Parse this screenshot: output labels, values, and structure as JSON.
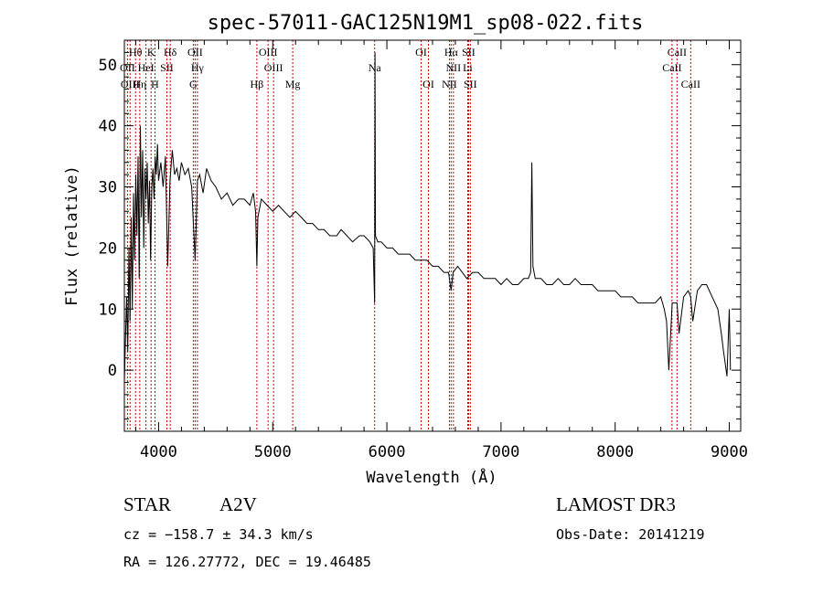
{
  "chart_data": {
    "type": "line",
    "title": "spec-57011-GAC125N19M1_sp08-022.fits",
    "xlabel": "Wavelength (Å)",
    "ylabel": "Flux (relative)",
    "xlim": [
      3700,
      9100
    ],
    "ylim": [
      -10,
      54
    ],
    "xticks": [
      4000,
      5000,
      6000,
      7000,
      8000,
      9000
    ],
    "xtick_labels": [
      "4000",
      "5000",
      "6000",
      "7000",
      "8000",
      "9000"
    ],
    "yticks": [
      0,
      10,
      20,
      30,
      40,
      50
    ],
    "ytick_labels": [
      "0",
      "10",
      "20",
      "30",
      "40",
      "50"
    ],
    "series": [
      {
        "name": "flux",
        "x": [
          3700,
          3710,
          3720,
          3730,
          3740,
          3750,
          3760,
          3770,
          3780,
          3790,
          3800,
          3810,
          3820,
          3830,
          3840,
          3850,
          3860,
          3870,
          3880,
          3890,
          3900,
          3910,
          3920,
          3930,
          3940,
          3950,
          3960,
          3970,
          3980,
          3990,
          4000,
          4020,
          4040,
          4060,
          4080,
          4100,
          4120,
          4140,
          4160,
          4180,
          4200,
          4230,
          4260,
          4290,
          4320,
          4340,
          4360,
          4390,
          4420,
          4460,
          4500,
          4550,
          4600,
          4650,
          4700,
          4750,
          4800,
          4830,
          4850,
          4861,
          4870,
          4900,
          4950,
          5000,
          5050,
          5100,
          5150,
          5200,
          5250,
          5300,
          5350,
          5400,
          5450,
          5500,
          5560,
          5600,
          5650,
          5700,
          5760,
          5800,
          5850,
          5880,
          5893,
          5896,
          5900,
          5920,
          5950,
          6000,
          6050,
          6100,
          6150,
          6200,
          6250,
          6300,
          6350,
          6400,
          6450,
          6500,
          6540,
          6563,
          6580,
          6620,
          6660,
          6700,
          6750,
          6800,
          6850,
          6900,
          6950,
          7000,
          7050,
          7100,
          7150,
          7200,
          7240,
          7260,
          7270,
          7280,
          7300,
          7350,
          7400,
          7450,
          7500,
          7550,
          7600,
          7650,
          7700,
          7750,
          7800,
          7850,
          7900,
          7950,
          8000,
          8050,
          8100,
          8150,
          8200,
          8250,
          8300,
          8350,
          8400,
          8430,
          8450,
          8470,
          8500,
          8542,
          8560,
          8600,
          8640,
          8662,
          8680,
          8720,
          8760,
          8800,
          8850,
          8900,
          8930,
          8950,
          8980,
          9000,
          9010
        ],
        "y": [
          -2,
          5,
          12,
          3,
          20,
          8,
          25,
          10,
          29,
          18,
          32,
          22,
          35,
          15,
          40,
          25,
          36,
          20,
          33,
          28,
          34,
          24,
          31,
          18,
          30,
          33,
          28,
          35,
          32,
          37,
          31,
          34,
          30,
          35,
          17,
          31,
          36,
          32,
          33,
          31,
          34,
          32,
          33,
          30,
          18,
          31,
          32,
          29,
          33,
          31,
          30,
          28,
          29,
          27,
          28,
          28,
          27,
          29,
          26,
          17,
          25,
          28,
          27,
          26,
          27,
          26,
          25,
          26,
          25,
          24,
          24,
          23,
          23,
          22,
          22,
          23,
          22,
          21,
          22,
          22,
          21,
          20,
          11,
          52,
          22,
          21,
          21,
          20,
          20,
          19,
          19,
          19,
          18,
          18,
          18,
          17,
          17,
          16,
          16,
          13,
          16,
          17,
          16,
          15,
          16,
          16,
          15,
          15,
          15,
          14,
          15,
          14,
          14,
          15,
          15,
          16,
          34,
          17,
          15,
          15,
          14,
          14,
          15,
          14,
          14,
          15,
          14,
          14,
          14,
          13,
          13,
          13,
          13,
          12,
          12,
          12,
          11,
          11,
          11,
          11,
          12,
          10,
          8,
          0,
          11,
          11,
          6,
          12,
          13,
          12,
          8,
          13,
          14,
          14,
          12,
          10,
          6,
          3,
          -1,
          10,
          0
        ]
      }
    ],
    "emission_lines": [
      {
        "name": "Hθ",
        "x": 3798,
        "row": 0
      },
      {
        "name": "K",
        "x": 3934,
        "row": 0
      },
      {
        "name": "Hδ",
        "x": 4102,
        "row": 0
      },
      {
        "name": "OII",
        "x": 4320,
        "row": 0
      },
      {
        "name": "OIII",
        "x": 4959,
        "row": 0
      },
      {
        "name": "OI",
        "x": 6300,
        "row": 0
      },
      {
        "name": "Hα",
        "x": 6563,
        "row": 0
      },
      {
        "name": "SII",
        "x": 6716,
        "row": 0
      },
      {
        "name": "CaII",
        "x": 8542,
        "row": 0
      },
      {
        "name": "OII",
        "x": 3727,
        "row": 1
      },
      {
        "name": "HeI",
        "x": 3889,
        "row": 1
      },
      {
        "name": "SII",
        "x": 4072,
        "row": 1
      },
      {
        "name": "Hγ",
        "x": 4340,
        "row": 1
      },
      {
        "name": "OIII",
        "x": 5007,
        "row": 1
      },
      {
        "name": "Na",
        "x": 5893,
        "row": 1
      },
      {
        "name": "NII",
        "x": 6583,
        "row": 1
      },
      {
        "name": "Li",
        "x": 6708,
        "row": 1
      },
      {
        "name": "CaII",
        "x": 8498,
        "row": 1
      },
      {
        "name": "OIII",
        "x": 3750,
        "row": 2
      },
      {
        "name": "Hη",
        "x": 3835,
        "row": 2
      },
      {
        "name": "H",
        "x": 3968,
        "row": 2
      },
      {
        "name": "G",
        "x": 4304,
        "row": 2
      },
      {
        "name": "Hβ",
        "x": 4861,
        "row": 2
      },
      {
        "name": "Mg",
        "x": 5175,
        "row": 2
      },
      {
        "name": "OI",
        "x": 6364,
        "row": 2
      },
      {
        "name": "NII",
        "x": 6548,
        "row": 2
      },
      {
        "name": "SII",
        "x": 6731,
        "row": 2
      },
      {
        "name": "CaII",
        "x": 8662,
        "row": 2
      }
    ],
    "line_marker_color": "#cc0000",
    "series_color": "#000000"
  },
  "info": {
    "object_class": "STAR",
    "subclass": "A2V",
    "survey": "LAMOST DR3",
    "redshift": "cz = −158.7 ± 34.3 km/s",
    "obs_date": "Obs-Date: 20141219",
    "coordinates": "RA = 126.27772, DEC =  19.46485"
  }
}
